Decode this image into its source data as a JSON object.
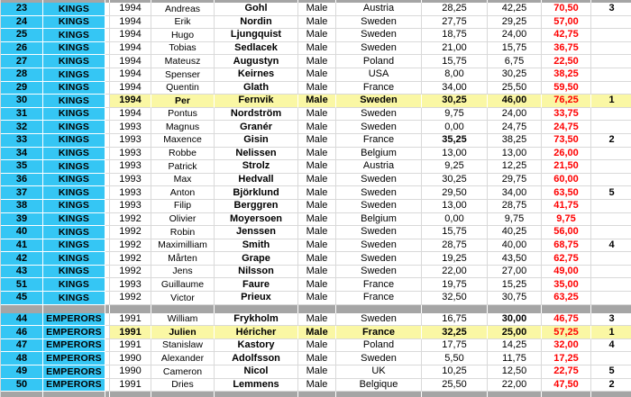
{
  "colors": {
    "cyan": "#35C6F4",
    "yellow": "#FAF7A4",
    "red": "#FE0000",
    "gray": "#A5A5A5",
    "grid": "#D9D9D9"
  },
  "table": {
    "columns": [
      "row-number",
      "team",
      "year",
      "first-name",
      "last-name",
      "gender",
      "country",
      "score1",
      "score2",
      "total",
      "rank"
    ],
    "rows": [
      {
        "type": "sep",
        "variant": "top"
      },
      {
        "num": "23",
        "team": "KINGS",
        "year": "1994",
        "first": "Andreas",
        "last": "Gohl",
        "gender": "Male",
        "country": "Austria",
        "s1": "28,25",
        "s2": "42,25",
        "total": "70,50",
        "rank": "3"
      },
      {
        "num": "24",
        "team": "KINGS",
        "year": "1994",
        "first": "Erik",
        "last": "Nordin",
        "gender": "Male",
        "country": "Sweden",
        "s1": "27,75",
        "s2": "29,25",
        "total": "57,00",
        "rank": ""
      },
      {
        "num": "25",
        "team": "KINGS",
        "year": "1994",
        "first": "Hugo",
        "last": "Ljungquist",
        "gender": "Male",
        "country": "Sweden",
        "s1": "18,75",
        "s2": "24,00",
        "total": "42,75",
        "rank": ""
      },
      {
        "num": "26",
        "team": "KINGS",
        "year": "1994",
        "first": "Tobias",
        "last": "Sedlacek",
        "gender": "Male",
        "country": "Sweden",
        "s1": "21,00",
        "s2": "15,75",
        "total": "36,75",
        "rank": ""
      },
      {
        "num": "27",
        "team": "KINGS",
        "year": "1994",
        "first": "Mateusz",
        "last": "Augustyn",
        "gender": "Male",
        "country": "Poland",
        "s1": "15,75",
        "s2": "6,75",
        "total": "22,50",
        "rank": ""
      },
      {
        "num": "28",
        "team": "KINGS",
        "year": "1994",
        "first": "Spenser",
        "last": "Keirnes",
        "gender": "Male",
        "country": "USA",
        "s1": "8,00",
        "s2": "30,25",
        "total": "38,25",
        "rank": ""
      },
      {
        "num": "29",
        "team": "KINGS",
        "year": "1994",
        "first": "Quentin",
        "last": "Glath",
        "gender": "Male",
        "country": "France",
        "s1": "34,00",
        "s2": "25,50",
        "total": "59,50",
        "rank": ""
      },
      {
        "num": "30",
        "team": "KINGS",
        "year": "1994",
        "first": "Per",
        "last": "Fernvik",
        "gender": "Male",
        "country": "Sweden",
        "s1": "30,25",
        "s2": "46,00",
        "total": "76,25",
        "rank": "1",
        "highlight": true
      },
      {
        "num": "31",
        "team": "KINGS",
        "year": "1994",
        "first": "Pontus",
        "last": "Nordström",
        "gender": "Male",
        "country": "Sweden",
        "s1": "9,75",
        "s2": "24,00",
        "total": "33,75",
        "rank": ""
      },
      {
        "num": "32",
        "team": "KINGS",
        "year": "1993",
        "first": "Magnus",
        "last": "Granér",
        "gender": "Male",
        "country": "Sweden",
        "s1": "0,00",
        "s2": "24,75",
        "total": "24,75",
        "rank": ""
      },
      {
        "num": "33",
        "team": "KINGS",
        "year": "1993",
        "first": "Maxence",
        "last": "Gisin",
        "gender": "Male",
        "country": "France",
        "s1": "35,25",
        "s2": "38,25",
        "total": "73,50",
        "rank": "2",
        "bold": [
          "s1"
        ]
      },
      {
        "num": "34",
        "team": "KINGS",
        "year": "1993",
        "first": "Robbe",
        "last": "Nelissen",
        "gender": "Male",
        "country": "Belgium",
        "s1": "13,00",
        "s2": "13,00",
        "total": "26,00",
        "rank": ""
      },
      {
        "num": "35",
        "team": "KINGS",
        "year": "1993",
        "first": "Patrick",
        "last": "Strolz",
        "gender": "Male",
        "country": "Austria",
        "s1": "9,25",
        "s2": "12,25",
        "total": "21,50",
        "rank": ""
      },
      {
        "num": "36",
        "team": "KINGS",
        "year": "1993",
        "first": "Max",
        "last": "Hedvall",
        "gender": "Male",
        "country": "Sweden",
        "s1": "30,25",
        "s2": "29,75",
        "total": "60,00",
        "rank": ""
      },
      {
        "num": "37",
        "team": "KINGS",
        "year": "1993",
        "first": "Anton",
        "last": "Björklund",
        "gender": "Male",
        "country": "Sweden",
        "s1": "29,50",
        "s2": "34,00",
        "total": "63,50",
        "rank": "5"
      },
      {
        "num": "38",
        "team": "KINGS",
        "year": "1993",
        "first": "Filip",
        "last": "Berggren",
        "gender": "Male",
        "country": "Sweden",
        "s1": "13,00",
        "s2": "28,75",
        "total": "41,75",
        "rank": ""
      },
      {
        "num": "39",
        "team": "KINGS",
        "year": "1992",
        "first": "Olivier",
        "last": "Moyersoen",
        "gender": "Male",
        "country": "Belgium",
        "s1": "0,00",
        "s2": "9,75",
        "total": "9,75",
        "rank": ""
      },
      {
        "num": "40",
        "team": "KINGS",
        "year": "1992",
        "first": "Robin",
        "last": "Jenssen",
        "gender": "Male",
        "country": "Sweden",
        "s1": "15,75",
        "s2": "40,25",
        "total": "56,00",
        "rank": ""
      },
      {
        "num": "41",
        "team": "KINGS",
        "year": "1992",
        "first": "Maximilliam",
        "last": "Smith",
        "gender": "Male",
        "country": "Sweden",
        "s1": "28,75",
        "s2": "40,00",
        "total": "68,75",
        "rank": "4"
      },
      {
        "num": "42",
        "team": "KINGS",
        "year": "1992",
        "first": "Mårten",
        "last": "Grape",
        "gender": "Male",
        "country": "Sweden",
        "s1": "19,25",
        "s2": "43,50",
        "total": "62,75",
        "rank": ""
      },
      {
        "num": "43",
        "team": "KINGS",
        "year": "1992",
        "first": "Jens",
        "last": "Nilsson",
        "gender": "Male",
        "country": "Sweden",
        "s1": "22,00",
        "s2": "27,00",
        "total": "49,00",
        "rank": ""
      },
      {
        "num": "51",
        "team": "KINGS",
        "year": "1993",
        "first": "Guillaume",
        "last": "Faure",
        "gender": "Male",
        "country": "France",
        "s1": "19,75",
        "s2": "15,25",
        "total": "35,00",
        "rank": ""
      },
      {
        "num": "45",
        "team": "KINGS",
        "year": "1992",
        "first": "Victor",
        "last": "Prieux",
        "gender": "Male",
        "country": "France",
        "s1": "32,50",
        "s2": "30,75",
        "total": "63,25",
        "rank": ""
      },
      {
        "type": "sep"
      },
      {
        "num": "44",
        "team": "EMPERORS",
        "year": "1991",
        "first": "William",
        "last": "Frykholm",
        "gender": "Male",
        "country": "Sweden",
        "s1": "16,75",
        "s2": "30,00",
        "total": "46,75",
        "rank": "3",
        "bold": [
          "s2"
        ]
      },
      {
        "num": "46",
        "team": "EMPERORS",
        "year": "1991",
        "first": "Julien",
        "last": "Héricher",
        "gender": "Male",
        "country": "France",
        "s1": "32,25",
        "s2": "25,00",
        "total": "57,25",
        "rank": "1",
        "highlight": true
      },
      {
        "num": "47",
        "team": "EMPERORS",
        "year": "1991",
        "first": "Stanislaw",
        "last": "Kastory",
        "gender": "Male",
        "country": "Poland",
        "s1": "17,75",
        "s2": "14,25",
        "total": "32,00",
        "rank": "4"
      },
      {
        "num": "48",
        "team": "EMPERORS",
        "year": "1990",
        "first": "Alexander",
        "last": "Adolfsson",
        "gender": "Male",
        "country": "Sweden",
        "s1": "5,50",
        "s2": "11,75",
        "total": "17,25",
        "rank": ""
      },
      {
        "num": "49",
        "team": "EMPERORS",
        "year": "1990",
        "first": "Cameron",
        "last": "Nicol",
        "gender": "Male",
        "country": "UK",
        "s1": "10,25",
        "s2": "12,50",
        "total": "22,75",
        "rank": "5"
      },
      {
        "num": "50",
        "team": "EMPERORS",
        "year": "1991",
        "first": "Dries",
        "last": "Lemmens",
        "gender": "Male",
        "country": "Belgique",
        "s1": "25,50",
        "s2": "22,00",
        "total": "47,50",
        "rank": "2"
      },
      {
        "type": "sep",
        "variant": "bottom"
      }
    ]
  }
}
